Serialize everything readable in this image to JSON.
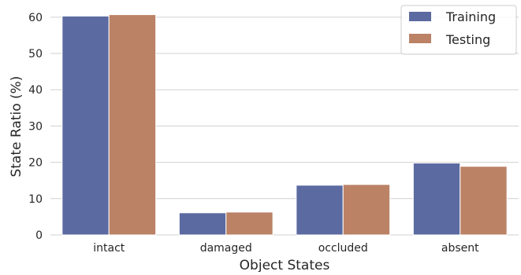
{
  "chart_data": {
    "type": "bar",
    "title": "",
    "xlabel": "Object States",
    "ylabel": "State Ratio (%)",
    "categories": [
      "intact",
      "damaged",
      "occluded",
      "absent"
    ],
    "series": [
      {
        "name": "Training",
        "values": [
          60.3,
          6.1,
          13.7,
          19.8
        ],
        "color": "#5b6aa0"
      },
      {
        "name": "Testing",
        "values": [
          60.7,
          6.3,
          13.9,
          18.9
        ],
        "color": "#bb8266"
      }
    ],
    "ylim": [
      0,
      63
    ],
    "yticks": [
      0,
      10,
      20,
      30,
      40,
      50,
      60
    ],
    "grid": "horizontal",
    "legend_position": "top-right"
  }
}
